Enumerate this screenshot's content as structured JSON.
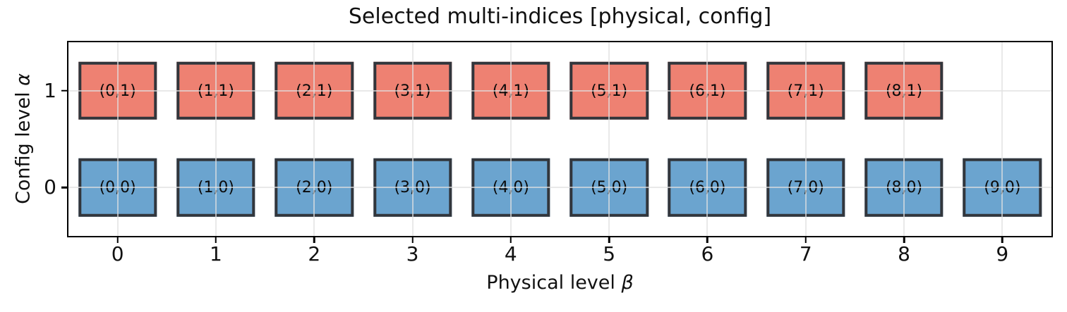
{
  "title": "Selected multi-indices [physical, config]",
  "axes": {
    "xlabel": {
      "text": "Physical level ",
      "symbol": "β"
    },
    "ylabel": {
      "text": "Config level ",
      "symbol": "α"
    }
  },
  "colors": {
    "config_level_0_fill": "#6BA4CF",
    "config_level_1_fill": "#EE8172",
    "box_edge": "#32363C",
    "grid": "rgba(223,223,223,0.7)",
    "spine": "#000000",
    "text": "#111111"
  },
  "chart_data": {
    "type": "scatter",
    "title": "Selected multi-indices [physical, config]",
    "xlabel": "Physical level β",
    "ylabel": "Config level α",
    "xlim": [
      -0.5,
      9.5
    ],
    "ylim": [
      -0.5,
      1.5
    ],
    "grid": true,
    "legend": false,
    "marker_shape": "rectangle",
    "marker_width_data_units": 0.8,
    "marker_height_data_units": 0.6,
    "xticks": [
      {
        "value": 0,
        "label": "0"
      },
      {
        "value": 1,
        "label": "1"
      },
      {
        "value": 2,
        "label": "2"
      },
      {
        "value": 3,
        "label": "3"
      },
      {
        "value": 4,
        "label": "4"
      },
      {
        "value": 5,
        "label": "5"
      },
      {
        "value": 6,
        "label": "6"
      },
      {
        "value": 7,
        "label": "7"
      },
      {
        "value": 8,
        "label": "8"
      },
      {
        "value": 9,
        "label": "9"
      }
    ],
    "yticks": [
      {
        "value": 1,
        "label": "1"
      },
      {
        "value": 0,
        "label": "0"
      }
    ],
    "series": [
      {
        "name": "config_level_1",
        "color": "#EE8172",
        "points": [
          [
            0,
            1
          ],
          [
            1,
            1
          ],
          [
            2,
            1
          ],
          [
            3,
            1
          ],
          [
            4,
            1
          ],
          [
            5,
            1
          ],
          [
            6,
            1
          ],
          [
            7,
            1
          ],
          [
            8,
            1
          ]
        ],
        "labels": [
          "(0,1)",
          "(1,1)",
          "(2,1)",
          "(3,1)",
          "(4,1)",
          "(5,1)",
          "(6,1)",
          "(7,1)",
          "(8,1)"
        ]
      },
      {
        "name": "config_level_0",
        "color": "#6BA4CF",
        "points": [
          [
            0,
            0
          ],
          [
            1,
            0
          ],
          [
            2,
            0
          ],
          [
            3,
            0
          ],
          [
            4,
            0
          ],
          [
            5,
            0
          ],
          [
            6,
            0
          ],
          [
            7,
            0
          ],
          [
            8,
            0
          ],
          [
            9,
            0
          ]
        ],
        "labels": [
          "(0,0)",
          "(1,0)",
          "(2,0)",
          "(3,0)",
          "(4,0)",
          "(5,0)",
          "(6,0)",
          "(7,0)",
          "(8,0)",
          "(9,0)"
        ]
      }
    ]
  }
}
